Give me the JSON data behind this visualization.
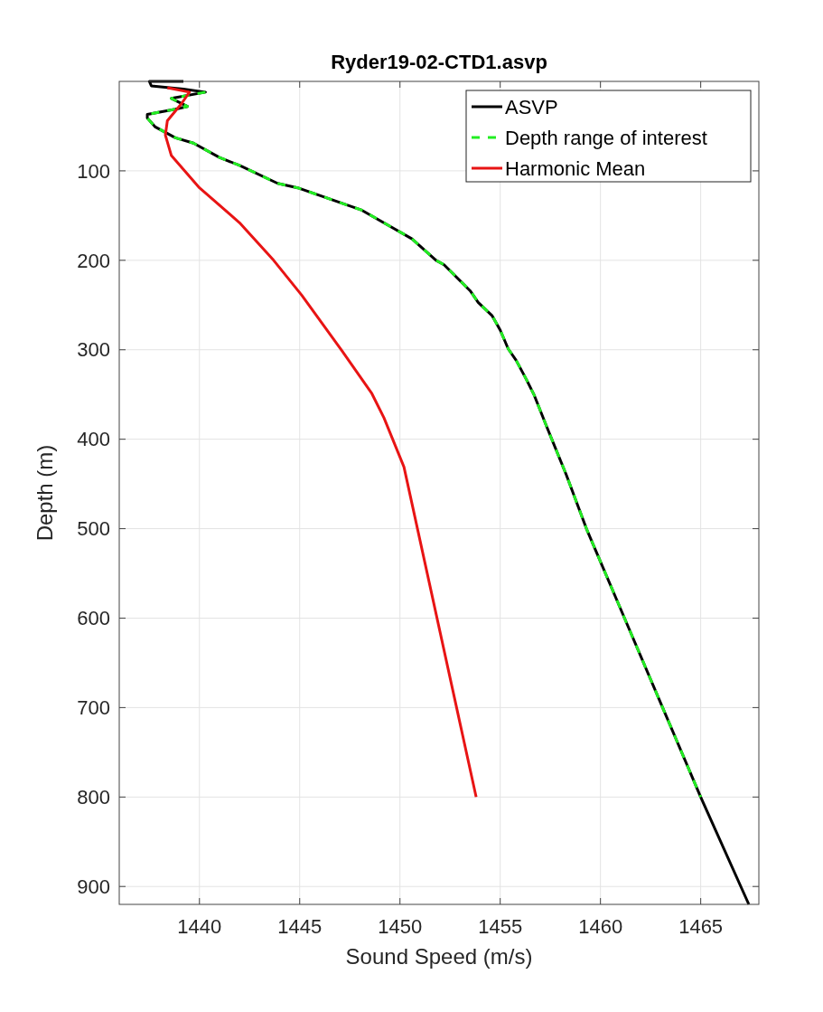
{
  "chart_data": {
    "type": "line",
    "title": "Ryder19-02-CTD1.asvp",
    "xlabel": "Sound Speed (m/s)",
    "ylabel": "Depth (m)",
    "xlim": [
      1436,
      1467.9
    ],
    "ylim": [
      920,
      0
    ],
    "xticks": [
      1440,
      1445,
      1450,
      1455,
      1460,
      1465
    ],
    "yticks": [
      100,
      200,
      300,
      400,
      500,
      600,
      700,
      800,
      900
    ],
    "grid": true,
    "legend": "top right",
    "series": [
      {
        "name": "ASVP",
        "color": "#000000",
        "line_style": "solid",
        "x": [
          1439.2,
          1437.5,
          1437.6,
          1439.2,
          1440.3,
          1438.6,
          1439.4,
          1438.8,
          1437.4,
          1437.4,
          1437.8,
          1438.8,
          1439.7,
          1441.0,
          1442.0,
          1443.9,
          1444.9,
          1448.1,
          1450.6,
          1451.8,
          1452.2,
          1453.5,
          1453.9,
          1454.6,
          1455.0,
          1455.4,
          1455.8,
          1456.3,
          1456.7,
          1457.3,
          1458.3,
          1459.3,
          1461.2,
          1463.1,
          1465.0,
          1467.4
        ],
        "values": [
          0,
          0,
          5,
          8.5,
          12,
          19,
          28,
          31,
          37,
          41,
          51,
          63,
          69,
          85,
          94,
          114,
          119,
          144,
          176,
          200,
          205,
          234,
          247,
          262,
          278,
          299,
          312,
          333,
          351,
          385,
          440,
          500,
          600,
          700,
          800,
          920
        ]
      },
      {
        "name": "Depth range of interest",
        "color": "#22ee22",
        "line_style": "dashed",
        "x": [
          1440.3,
          1438.6,
          1439.4,
          1438.8,
          1437.4,
          1437.4,
          1437.8,
          1438.8,
          1439.7,
          1441.0,
          1442.0,
          1443.9,
          1444.9,
          1448.1,
          1450.6,
          1451.8,
          1452.2,
          1453.5,
          1453.9,
          1454.6,
          1455.0,
          1455.4,
          1455.8,
          1456.3,
          1456.7,
          1457.3,
          1458.3,
          1459.3,
          1461.2,
          1463.1,
          1465.0
        ],
        "values": [
          12,
          19,
          28,
          31,
          37,
          41,
          51,
          63,
          69,
          85,
          94,
          114,
          119,
          144,
          176,
          200,
          205,
          234,
          247,
          262,
          278,
          299,
          312,
          333,
          351,
          385,
          440,
          500,
          600,
          700,
          800
        ]
      },
      {
        "name": "Harmonic Mean",
        "color": "#e81414",
        "line_style": "solid",
        "x": [
          1438.4,
          1439.5,
          1439.1,
          1438.4,
          1438.3,
          1438.6,
          1440.0,
          1442.0,
          1443.7,
          1445.1,
          1447.1,
          1448.6,
          1449.2,
          1450.2,
          1453.8
        ],
        "values": [
          7,
          12,
          25,
          44,
          60,
          83,
          119,
          158,
          200,
          239,
          301,
          349,
          376,
          431,
          800
        ]
      }
    ]
  }
}
